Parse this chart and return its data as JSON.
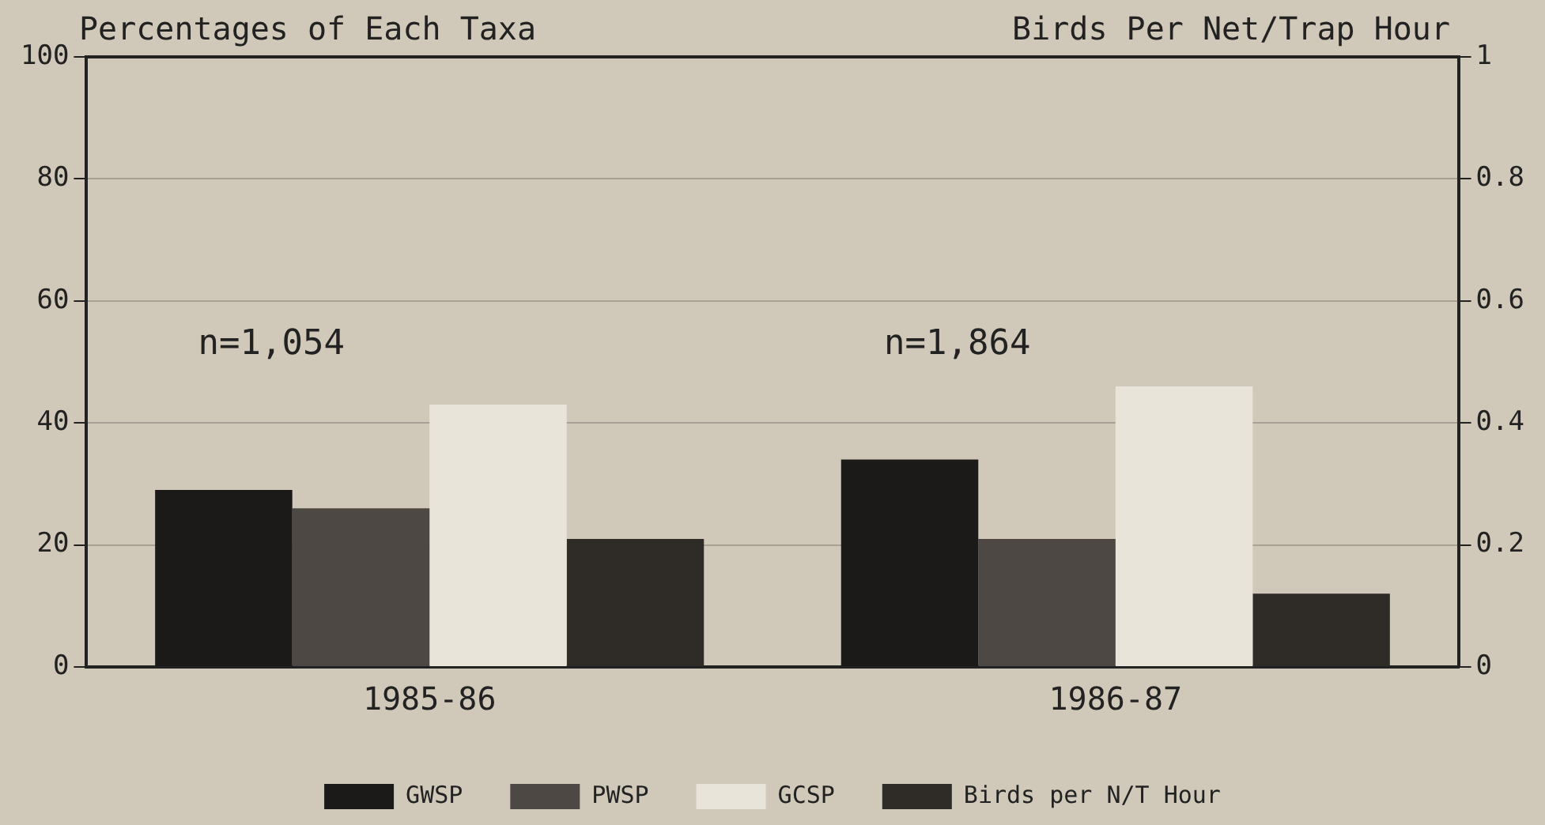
{
  "chart_data": {
    "type": "bar",
    "ylabel": "Percentages of Each Taxa",
    "y2label": "Birds Per Net/Trap Hour",
    "categories": [
      "1985-86",
      "1986-87"
    ],
    "series": [
      {
        "name": "GWSP",
        "color": "#1c1a18",
        "values": [
          29,
          34
        ]
      },
      {
        "name": "PWSP",
        "color": "#4d4843",
        "values": [
          26,
          21
        ]
      },
      {
        "name": "GCSP",
        "color": "#e8e4da",
        "values": [
          43,
          46
        ]
      },
      {
        "name": "Birds per N/T Hour",
        "color": "#2f2b27",
        "values": [
          0.21,
          0.12
        ],
        "axis": "y2"
      }
    ],
    "ylim": [
      0,
      100
    ],
    "yticks": [
      0,
      20,
      40,
      60,
      80,
      100
    ],
    "y2lim": [
      0,
      1
    ],
    "y2ticks": [
      0,
      0.2,
      0.4,
      0.6,
      0.8,
      1
    ],
    "grid": "y",
    "legend": "bottom",
    "annotations": [
      "n=1,054",
      "n=1,864"
    ]
  }
}
